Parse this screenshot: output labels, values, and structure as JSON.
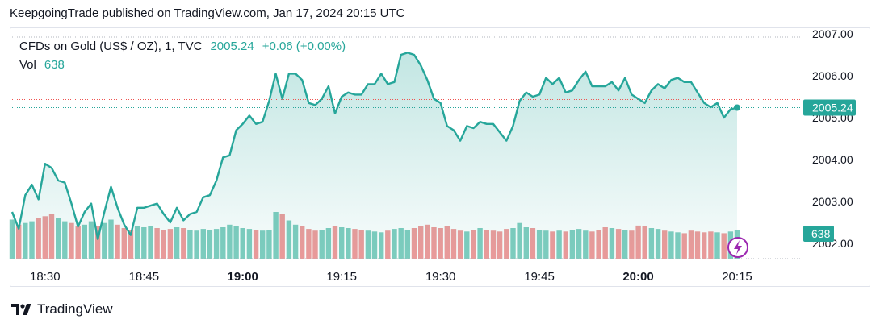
{
  "header": {
    "published": "KeepgoingTrade published on TradingView.com, Jan 17, 2024 20:15 UTC"
  },
  "legend": {
    "symbol": "CFDs on Gold (US$ / OZ), 1, TVC",
    "price": "2005.24",
    "change": "+0.06 (+0.00%)",
    "vol_label": "Vol",
    "vol_value": "638"
  },
  "footer": {
    "brand": "TradingView"
  },
  "colors": {
    "line": "#26a69a",
    "vol_up": "#7fcdbf",
    "vol_down": "#ef9a9a",
    "bolt": "#9c27b0"
  },
  "chart_data": {
    "type": "area",
    "series": [
      {
        "values": [
          2002.75,
          2002.35,
          2003.15,
          2003.4,
          2003.05,
          2003.9,
          2003.8,
          2003.5,
          2003.45,
          2002.95,
          2002.4,
          2002.75,
          2002.95,
          2002.1,
          2002.75,
          2003.35,
          2002.85,
          2002.45,
          2002.2,
          2002.85,
          2002.85,
          2002.9,
          2002.95,
          2002.7,
          2002.5,
          2002.85,
          2002.55,
          2002.7,
          2002.75,
          2003.1,
          2003.15,
          2003.5,
          2004.05,
          2004.1,
          2004.7,
          2004.85,
          2005.05,
          2004.85,
          2004.9,
          2005.4,
          2006.05,
          2005.45,
          2006.05,
          2006.05,
          2005.9,
          2005.35,
          2005.3,
          2005.45,
          2005.75,
          2005.1,
          2005.5,
          2005.6,
          2005.55,
          2005.55,
          2005.8,
          2005.8,
          2006.05,
          2005.8,
          2005.85,
          2006.5,
          2006.55,
          2006.5,
          2006.25,
          2005.9,
          2005.45,
          2005.35,
          2004.8,
          2004.7,
          2004.45,
          2004.8,
          2004.75,
          2004.9,
          2004.85,
          2004.85,
          2004.65,
          2004.45,
          2004.8,
          2005.4,
          2005.6,
          2005.5,
          2005.55,
          2005.95,
          2005.8,
          2005.95,
          2005.6,
          2005.65,
          2005.9,
          2006.1,
          2005.75,
          2005.75,
          2005.75,
          2005.85,
          2005.65,
          2005.95,
          2005.55,
          2005.45,
          2005.35,
          2005.65,
          2005.8,
          2005.7,
          2005.9,
          2005.95,
          2005.85,
          2005.85,
          2005.6,
          2005.35,
          2005.25,
          2005.35,
          2005.0,
          2005.2,
          2005.24
        ]
      }
    ],
    "volume": {
      "values": [
        46,
        40,
        42,
        44,
        48,
        50,
        53,
        48,
        44,
        42,
        38,
        40,
        44,
        38,
        42,
        46,
        40,
        36,
        34,
        38,
        37,
        38,
        36,
        34,
        35,
        37,
        36,
        34,
        33,
        35,
        34,
        35,
        37,
        40,
        38,
        36,
        35,
        34,
        33,
        34,
        55,
        53,
        45,
        40,
        38,
        35,
        33,
        34,
        36,
        38,
        37,
        36,
        35,
        34,
        33,
        32,
        31,
        33,
        35,
        36,
        34,
        36,
        38,
        40,
        37,
        36,
        38,
        35,
        33,
        32,
        34,
        36,
        34,
        33,
        32,
        35,
        36,
        42,
        37,
        36,
        34,
        33,
        32,
        33,
        32,
        34,
        35,
        33,
        32,
        34,
        37,
        36,
        35,
        34,
        33,
        39,
        38,
        36,
        35,
        33,
        32,
        31,
        30,
        33,
        32,
        31,
        32,
        31,
        30,
        32,
        34
      ],
      "up": [
        1,
        0,
        1,
        1,
        0,
        0,
        0,
        1,
        1,
        0,
        0,
        1,
        1,
        0,
        1,
        1,
        0,
        0,
        0,
        1,
        1,
        1,
        0,
        0,
        0,
        1,
        0,
        1,
        1,
        1,
        1,
        1,
        1,
        1,
        1,
        1,
        1,
        0,
        1,
        1,
        1,
        0,
        1,
        1,
        0,
        0,
        0,
        1,
        1,
        0,
        1,
        1,
        0,
        0,
        1,
        1,
        1,
        0,
        1,
        1,
        1,
        0,
        0,
        0,
        0,
        0,
        0,
        0,
        0,
        1,
        0,
        1,
        0,
        0,
        0,
        0,
        1,
        1,
        1,
        0,
        1,
        1,
        0,
        1,
        0,
        1,
        1,
        1,
        0,
        0,
        0,
        1,
        0,
        1,
        0,
        0,
        0,
        1,
        1,
        0,
        1,
        1,
        0,
        0,
        0,
        0,
        0,
        1,
        0,
        1,
        1
      ]
    },
    "x_ticks": [
      {
        "label": "18:30",
        "bar": 5,
        "bold": false
      },
      {
        "label": "18:45",
        "bar": 20,
        "bold": false
      },
      {
        "label": "19:00",
        "bar": 35,
        "bold": true
      },
      {
        "label": "19:15",
        "bar": 50,
        "bold": false
      },
      {
        "label": "19:30",
        "bar": 65,
        "bold": false
      },
      {
        "label": "19:45",
        "bar": 80,
        "bold": false
      },
      {
        "label": "20:00",
        "bar": 95,
        "bold": true
      },
      {
        "label": "20:15",
        "bar": 110,
        "bold": false
      }
    ],
    "y_ticks": [
      {
        "label": "2007.00",
        "value": 2007.0
      },
      {
        "label": "2006.00",
        "value": 2006.0
      },
      {
        "label": "2005.00",
        "value": 2005.0
      },
      {
        "label": "2004.00",
        "value": 2004.0
      },
      {
        "label": "2003.00",
        "value": 2003.0
      },
      {
        "label": "2002.00",
        "value": 2002.0
      }
    ],
    "ylim": [
      2001.8,
      2007.0
    ],
    "price_label": "2005.24",
    "volume_label": "638",
    "grid": false
  }
}
